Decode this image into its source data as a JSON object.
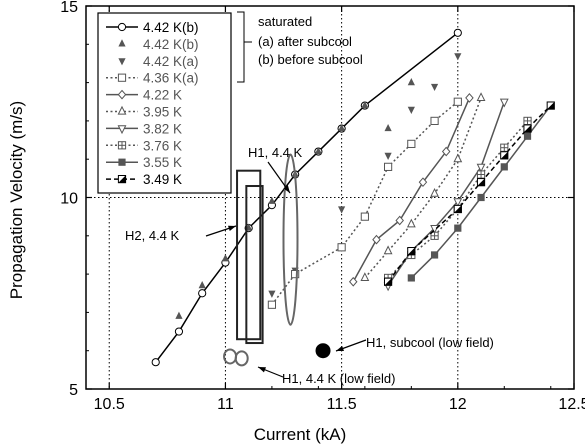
{
  "chart_data": {
    "type": "line",
    "xlabel": "Current (kA)",
    "ylabel": "Propagation Velocity (m/s)",
    "xlim": [
      10.4,
      12.5
    ],
    "ylim": [
      5,
      15
    ],
    "x_ticks": [
      "10.5",
      "11",
      "11.5",
      "12",
      "12.5"
    ],
    "y_ticks": [
      "5",
      "10",
      "15"
    ],
    "grid": "dotted, x at 10.5/11/11.5/12, y at 10",
    "legend_position": "top-left",
    "series": [
      {
        "name": "4.42 K(b)",
        "color": "#000000",
        "marker": "circle-open",
        "line": "solid",
        "x": [
          10.7,
          10.8,
          10.9,
          11.0,
          11.1,
          11.2,
          11.3,
          11.4,
          11.5,
          11.6,
          12.0
        ],
        "y": [
          5.7,
          6.5,
          7.5,
          8.3,
          9.2,
          9.8,
          10.6,
          11.2,
          11.8,
          12.4,
          14.3
        ]
      },
      {
        "name": "4.42 K(b)",
        "color": "#555555",
        "marker": "triangle-up",
        "line": "none",
        "x": [
          10.8,
          10.9,
          11.0,
          11.1,
          11.2,
          11.3,
          11.4,
          11.5,
          11.6,
          11.7,
          11.8
        ],
        "y": [
          6.9,
          7.7,
          8.4,
          9.2,
          9.9,
          10.6,
          11.2,
          11.8,
          12.4,
          11.8,
          13.0
        ]
      },
      {
        "name": "4.42 K(a)",
        "color": "#555555",
        "marker": "triangle-down",
        "line": "none",
        "x": [
          11.2,
          11.3,
          11.5,
          11.7,
          11.8,
          11.9,
          12.0
        ],
        "y": [
          7.5,
          8.1,
          9.7,
          11.1,
          12.3,
          12.9,
          13.7
        ]
      },
      {
        "name": "4.36 K(a)",
        "color": "#555555",
        "marker": "square-open",
        "line": "dotted",
        "x": [
          11.2,
          11.3,
          11.5,
          11.6,
          11.7,
          11.8,
          11.9,
          12.0
        ],
        "y": [
          7.2,
          8.0,
          8.7,
          9.5,
          10.8,
          11.4,
          12.0,
          12.5
        ]
      },
      {
        "name": "4.22 K",
        "color": "#555555",
        "marker": "diamond-open",
        "line": "solid",
        "x": [
          11.55,
          11.65,
          11.75,
          11.85,
          11.95,
          12.05
        ],
        "y": [
          7.8,
          8.9,
          9.4,
          10.4,
          11.2,
          12.6
        ]
      },
      {
        "name": "3.95 K",
        "color": "#555555",
        "marker": "triangle-up-open",
        "line": "dotted",
        "x": [
          11.6,
          11.7,
          11.8,
          11.9,
          12.0,
          12.1
        ],
        "y": [
          7.9,
          8.6,
          9.3,
          10.1,
          11.0,
          12.6
        ]
      },
      {
        "name": "3.82 K",
        "color": "#555555",
        "marker": "triangle-down-open",
        "line": "solid",
        "x": [
          11.7,
          11.8,
          11.9,
          12.0,
          12.1,
          12.2
        ],
        "y": [
          7.7,
          8.6,
          9.2,
          9.9,
          10.8,
          12.5
        ]
      },
      {
        "name": "3.76 K",
        "color": "#555555",
        "marker": "square-plus",
        "line": "dotted",
        "x": [
          11.7,
          11.8,
          11.9,
          12.0,
          12.1,
          12.2,
          12.3
        ],
        "y": [
          7.9,
          8.5,
          9.0,
          9.7,
          10.6,
          11.3,
          12.0
        ]
      },
      {
        "name": "3.55 K",
        "color": "#555555",
        "marker": "square-filled",
        "line": "solid",
        "x": [
          11.8,
          11.9,
          12.0,
          12.1,
          12.2,
          12.3,
          12.4
        ],
        "y": [
          7.9,
          8.5,
          9.2,
          10.0,
          10.8,
          11.6,
          12.4
        ]
      },
      {
        "name": "3.49 K",
        "color": "#000000",
        "marker": "square-half",
        "line": "dashed",
        "x": [
          11.7,
          11.8,
          12.0,
          12.1,
          12.2,
          12.3,
          12.4
        ],
        "y": [
          7.8,
          8.6,
          9.7,
          10.4,
          11.1,
          11.8,
          12.4
        ]
      }
    ],
    "extra_points": [
      {
        "label": "H1, 4.4 K (low field)",
        "x": [
          11.02,
          11.07
        ],
        "y": [
          5.8,
          5.8
        ],
        "marker": "circle-open"
      },
      {
        "label": "H1, subcool (low field)",
        "x": [
          11.42
        ],
        "y": [
          6.0
        ],
        "marker": "circle-filled"
      }
    ],
    "annotations": {
      "h2": "H2, 4.4 K",
      "h1": "H1, 4.4 K",
      "h1_low": "H1, 4.4 K (low field)",
      "h1_subcool": "H1, subcool (low field)",
      "saturated": "saturated",
      "after": "(a) after subcool",
      "before": "(b) before subcool"
    }
  }
}
